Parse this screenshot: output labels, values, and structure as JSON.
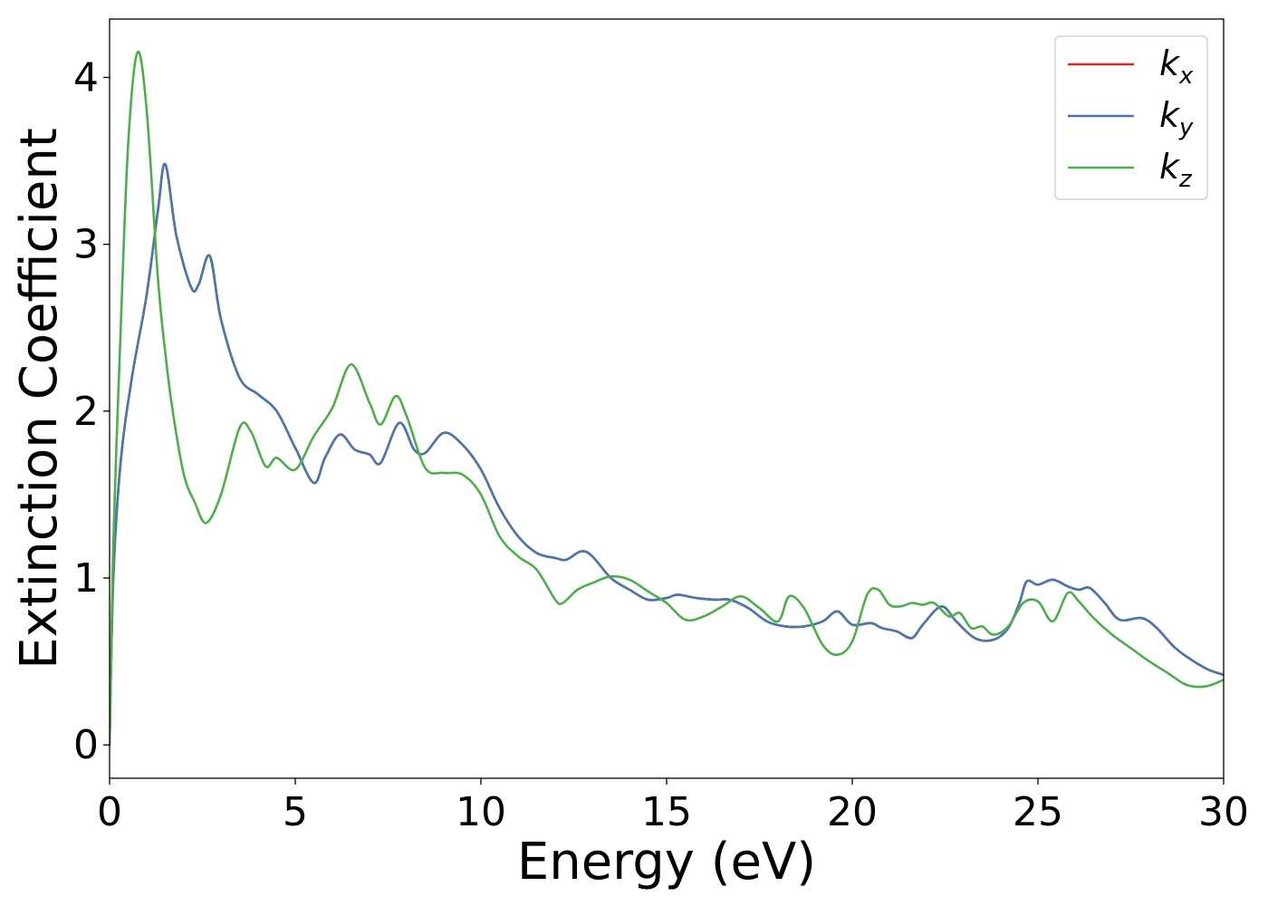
{
  "chart_data": {
    "type": "line",
    "title": "",
    "xlabel": "Energy (eV)",
    "ylabel": "Extinction Coefficient",
    "xlim": [
      0,
      30
    ],
    "ylim": [
      -0.2,
      4.35
    ],
    "xticks": [
      0,
      5,
      10,
      15,
      20,
      25,
      30
    ],
    "yticks": [
      0,
      1,
      2,
      3,
      4
    ],
    "grid": false,
    "legend_position": "top-right",
    "series": [
      {
        "name": "k",
        "subscript": "x",
        "color": "#d62728",
        "x": [
          0,
          0.1,
          0.3,
          0.6,
          1.0,
          1.3,
          1.5,
          1.8,
          2.2,
          2.4,
          2.7,
          3.0,
          3.5,
          4.0,
          4.5,
          5.0,
          5.5,
          5.8,
          6.2,
          6.6,
          7.0,
          7.3,
          7.8,
          8.2,
          8.5,
          9.0,
          9.5,
          10.0,
          10.5,
          11.0,
          11.5,
          12.0,
          12.3,
          12.7,
          13.0,
          13.5,
          14.0,
          14.5,
          15.0,
          15.3,
          15.8,
          16.3,
          16.7,
          17.2,
          17.7,
          18.2,
          18.7,
          19.2,
          19.6,
          20.0,
          20.5,
          20.8,
          21.2,
          21.6,
          21.9,
          22.4,
          22.8,
          23.3,
          23.8,
          24.2,
          24.5,
          24.7,
          25.0,
          25.4,
          25.8,
          26.1,
          26.4,
          26.8,
          27.2,
          27.8,
          28.2,
          28.7,
          29.2,
          29.6,
          30.0
        ],
        "y": [
          0.0,
          1.0,
          1.7,
          2.2,
          2.7,
          3.2,
          3.48,
          3.05,
          2.74,
          2.76,
          2.93,
          2.55,
          2.2,
          2.1,
          2.0,
          1.78,
          1.57,
          1.72,
          1.86,
          1.77,
          1.74,
          1.69,
          1.93,
          1.77,
          1.75,
          1.87,
          1.8,
          1.65,
          1.42,
          1.25,
          1.15,
          1.12,
          1.11,
          1.16,
          1.13,
          1.0,
          0.93,
          0.87,
          0.88,
          0.9,
          0.88,
          0.87,
          0.87,
          0.82,
          0.74,
          0.71,
          0.71,
          0.74,
          0.8,
          0.72,
          0.73,
          0.7,
          0.68,
          0.64,
          0.72,
          0.83,
          0.74,
          0.64,
          0.63,
          0.7,
          0.85,
          0.98,
          0.96,
          0.99,
          0.95,
          0.93,
          0.94,
          0.85,
          0.75,
          0.76,
          0.7,
          0.58,
          0.5,
          0.45,
          0.42
        ]
      },
      {
        "name": "k",
        "subscript": "y",
        "color": "#4878b0",
        "x": [
          0,
          0.1,
          0.3,
          0.6,
          1.0,
          1.3,
          1.5,
          1.8,
          2.2,
          2.4,
          2.7,
          3.0,
          3.5,
          4.0,
          4.5,
          5.0,
          5.5,
          5.8,
          6.2,
          6.6,
          7.0,
          7.3,
          7.8,
          8.2,
          8.5,
          9.0,
          9.5,
          10.0,
          10.5,
          11.0,
          11.5,
          12.0,
          12.3,
          12.7,
          13.0,
          13.5,
          14.0,
          14.5,
          15.0,
          15.3,
          15.8,
          16.3,
          16.7,
          17.2,
          17.7,
          18.2,
          18.7,
          19.2,
          19.6,
          20.0,
          20.5,
          20.8,
          21.2,
          21.6,
          21.9,
          22.4,
          22.8,
          23.3,
          23.8,
          24.2,
          24.5,
          24.7,
          25.0,
          25.4,
          25.8,
          26.1,
          26.4,
          26.8,
          27.2,
          27.8,
          28.2,
          28.7,
          29.2,
          29.6,
          30.0
        ],
        "y": [
          0.0,
          1.0,
          1.7,
          2.2,
          2.7,
          3.2,
          3.48,
          3.05,
          2.74,
          2.76,
          2.93,
          2.55,
          2.2,
          2.1,
          2.0,
          1.78,
          1.57,
          1.72,
          1.86,
          1.77,
          1.74,
          1.69,
          1.93,
          1.77,
          1.75,
          1.87,
          1.8,
          1.65,
          1.42,
          1.25,
          1.15,
          1.12,
          1.11,
          1.16,
          1.13,
          1.0,
          0.93,
          0.87,
          0.88,
          0.9,
          0.88,
          0.87,
          0.87,
          0.82,
          0.74,
          0.71,
          0.71,
          0.74,
          0.8,
          0.72,
          0.73,
          0.7,
          0.68,
          0.64,
          0.72,
          0.83,
          0.74,
          0.64,
          0.63,
          0.7,
          0.85,
          0.98,
          0.96,
          0.99,
          0.95,
          0.93,
          0.94,
          0.85,
          0.75,
          0.76,
          0.7,
          0.58,
          0.5,
          0.45,
          0.42
        ]
      },
      {
        "name": "k",
        "subscript": "z",
        "color": "#4daf4a",
        "x": [
          0,
          0.1,
          0.3,
          0.5,
          0.75,
          1.0,
          1.3,
          1.5,
          1.7,
          2.0,
          2.3,
          2.6,
          3.0,
          3.5,
          3.8,
          4.2,
          4.5,
          5.0,
          5.5,
          6.0,
          6.5,
          7.0,
          7.3,
          7.7,
          8.0,
          8.5,
          9.0,
          9.5,
          10.0,
          10.5,
          11.0,
          11.5,
          12.0,
          12.2,
          12.6,
          13.0,
          13.5,
          14.0,
          14.5,
          15.0,
          15.5,
          16.0,
          16.5,
          17.0,
          17.5,
          18.0,
          18.3,
          18.7,
          19.2,
          19.6,
          20.0,
          20.4,
          20.7,
          21.0,
          21.3,
          21.6,
          21.9,
          22.2,
          22.6,
          22.9,
          23.2,
          23.5,
          23.8,
          24.2,
          24.6,
          25.0,
          25.4,
          25.8,
          26.1,
          26.5,
          27.0,
          27.5,
          28.0,
          28.5,
          29.0,
          29.5,
          30.0
        ],
        "y": [
          0.0,
          1.2,
          2.5,
          3.6,
          4.15,
          3.8,
          2.8,
          2.35,
          2.0,
          1.62,
          1.45,
          1.33,
          1.5,
          1.9,
          1.88,
          1.67,
          1.72,
          1.65,
          1.85,
          2.02,
          2.28,
          2.05,
          1.92,
          2.09,
          1.97,
          1.66,
          1.63,
          1.62,
          1.5,
          1.25,
          1.13,
          1.05,
          0.87,
          0.85,
          0.93,
          0.97,
          1.01,
          0.99,
          0.92,
          0.85,
          0.75,
          0.77,
          0.83,
          0.89,
          0.82,
          0.74,
          0.89,
          0.82,
          0.6,
          0.54,
          0.62,
          0.9,
          0.93,
          0.84,
          0.83,
          0.85,
          0.84,
          0.85,
          0.77,
          0.79,
          0.7,
          0.71,
          0.66,
          0.71,
          0.85,
          0.86,
          0.74,
          0.91,
          0.86,
          0.76,
          0.66,
          0.58,
          0.5,
          0.43,
          0.36,
          0.35,
          0.39
        ]
      }
    ]
  }
}
